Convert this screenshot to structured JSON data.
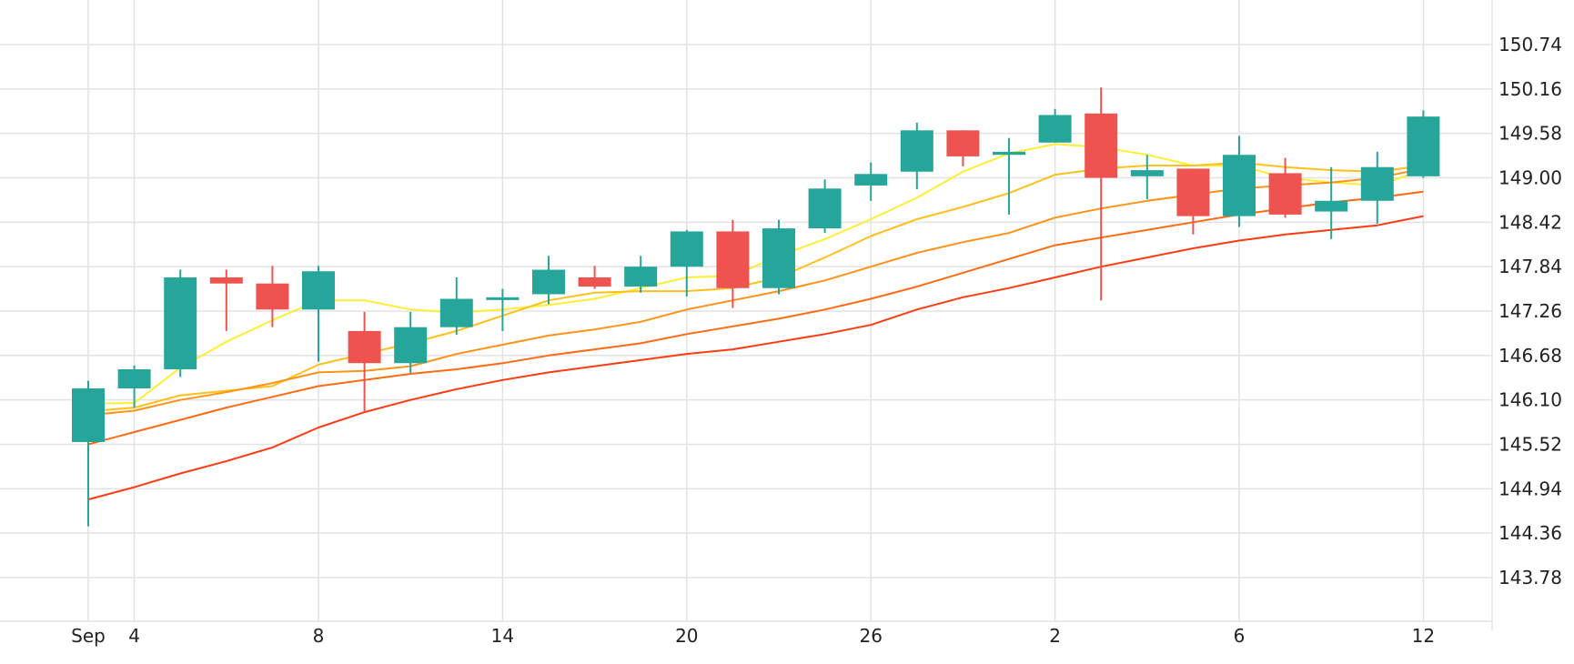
{
  "chart_data": {
    "type": "candlestick",
    "y_ticks": [
      "150.74",
      "150.16",
      "149.58",
      "149.00",
      "148.42",
      "147.84",
      "147.26",
      "146.68",
      "146.10",
      "145.52",
      "144.94",
      "144.36",
      "143.78"
    ],
    "ylim": [
      143.2,
      151.3
    ],
    "x_ticks": [
      {
        "index": 0,
        "label": "Sep"
      },
      {
        "index": 1,
        "label": "4"
      },
      {
        "index": 5,
        "label": "8"
      },
      {
        "index": 9,
        "label": "14"
      },
      {
        "index": 13,
        "label": "20"
      },
      {
        "index": 17,
        "label": "26"
      },
      {
        "index": 21,
        "label": "2"
      },
      {
        "index": 25,
        "label": "6"
      },
      {
        "index": 29,
        "label": "12"
      }
    ],
    "grid": true,
    "up_color": "#26a69a",
    "down_color": "#ef5350",
    "candles": [
      {
        "o": 145.55,
        "h": 146.35,
        "l": 144.45,
        "c": 146.25
      },
      {
        "o": 146.25,
        "h": 146.55,
        "l": 146.0,
        "c": 146.5
      },
      {
        "o": 146.5,
        "h": 147.8,
        "l": 146.4,
        "c": 147.7
      },
      {
        "o": 147.7,
        "h": 147.8,
        "l": 147.0,
        "c": 147.62
      },
      {
        "o": 147.62,
        "h": 147.85,
        "l": 147.05,
        "c": 147.28
      },
      {
        "o": 147.28,
        "h": 147.85,
        "l": 146.6,
        "c": 147.78
      },
      {
        "o": 147.0,
        "h": 147.25,
        "l": 145.95,
        "c": 146.58
      },
      {
        "o": 146.58,
        "h": 147.25,
        "l": 146.45,
        "c": 147.05
      },
      {
        "o": 147.05,
        "h": 147.7,
        "l": 146.95,
        "c": 147.42
      },
      {
        "o": 147.42,
        "h": 147.55,
        "l": 147.0,
        "c": 147.44
      },
      {
        "o": 147.48,
        "h": 147.98,
        "l": 147.35,
        "c": 147.8
      },
      {
        "o": 147.7,
        "h": 147.85,
        "l": 147.55,
        "c": 147.58
      },
      {
        "o": 147.58,
        "h": 147.98,
        "l": 147.5,
        "c": 147.84
      },
      {
        "o": 147.84,
        "h": 148.32,
        "l": 147.45,
        "c": 148.3
      },
      {
        "o": 148.3,
        "h": 148.45,
        "l": 147.3,
        "c": 147.56
      },
      {
        "o": 147.56,
        "h": 148.45,
        "l": 147.48,
        "c": 148.34
      },
      {
        "o": 148.34,
        "h": 148.98,
        "l": 148.28,
        "c": 148.86
      },
      {
        "o": 148.9,
        "h": 149.2,
        "l": 148.7,
        "c": 149.05
      },
      {
        "o": 149.08,
        "h": 149.72,
        "l": 148.85,
        "c": 149.62
      },
      {
        "o": 149.62,
        "h": 149.62,
        "l": 149.15,
        "c": 149.28
      },
      {
        "o": 149.3,
        "h": 149.52,
        "l": 148.52,
        "c": 149.34
      },
      {
        "o": 149.46,
        "h": 149.9,
        "l": 149.46,
        "c": 149.82
      },
      {
        "o": 149.84,
        "h": 150.18,
        "l": 147.4,
        "c": 149.0
      },
      {
        "o": 149.02,
        "h": 149.3,
        "l": 148.72,
        "c": 149.1
      },
      {
        "o": 149.12,
        "h": 149.12,
        "l": 148.26,
        "c": 148.5
      },
      {
        "o": 148.5,
        "h": 149.55,
        "l": 148.36,
        "c": 149.3
      },
      {
        "o": 149.06,
        "h": 149.26,
        "l": 148.48,
        "c": 148.52
      },
      {
        "o": 148.56,
        "h": 149.14,
        "l": 148.2,
        "c": 148.7
      },
      {
        "o": 148.7,
        "h": 149.34,
        "l": 148.4,
        "c": 149.14
      },
      {
        "o": 149.02,
        "h": 149.88,
        "l": 149.0,
        "c": 149.8
      }
    ],
    "series": [
      {
        "color": "#ffee33",
        "values": [
          146.05,
          146.06,
          146.52,
          146.86,
          147.14,
          147.4,
          147.4,
          147.28,
          147.24,
          147.28,
          147.34,
          147.42,
          147.56,
          147.7,
          147.72,
          147.98,
          148.2,
          148.46,
          148.74,
          149.08,
          149.32,
          149.44,
          149.4,
          149.3,
          149.16,
          149.16,
          149.0,
          148.94,
          148.9,
          149.1
        ]
      },
      {
        "color": "#ffc01a",
        "values": [
          145.95,
          146.0,
          146.16,
          146.22,
          146.28,
          146.56,
          146.7,
          146.84,
          147.0,
          147.2,
          147.4,
          147.5,
          147.52,
          147.52,
          147.56,
          147.7,
          147.96,
          148.24,
          148.46,
          148.62,
          148.8,
          149.04,
          149.12,
          149.16,
          149.16,
          149.2,
          149.14,
          149.1,
          149.08,
          149.16
        ]
      },
      {
        "color": "#ff9218",
        "values": [
          145.9,
          145.96,
          146.1,
          146.2,
          146.32,
          146.46,
          146.48,
          146.54,
          146.7,
          146.82,
          146.94,
          147.02,
          147.12,
          147.28,
          147.4,
          147.52,
          147.66,
          147.84,
          148.02,
          148.16,
          148.28,
          148.48,
          148.6,
          148.7,
          148.78,
          148.86,
          148.9,
          148.94,
          149.0,
          149.12
        ]
      },
      {
        "color": "#ff6a12",
        "values": [
          145.52,
          145.68,
          145.84,
          146.0,
          146.14,
          146.28,
          146.36,
          146.44,
          146.5,
          146.58,
          146.68,
          146.76,
          146.84,
          146.96,
          147.06,
          147.16,
          147.28,
          147.42,
          147.58,
          147.76,
          147.94,
          148.12,
          148.22,
          148.32,
          148.42,
          148.52,
          148.6,
          148.68,
          148.74,
          148.82
        ]
      },
      {
        "color": "#ff3b12",
        "values": [
          144.8,
          144.96,
          145.14,
          145.3,
          145.48,
          145.74,
          145.94,
          146.1,
          146.24,
          146.36,
          146.46,
          146.54,
          146.62,
          146.7,
          146.76,
          146.86,
          146.96,
          147.08,
          147.28,
          147.44,
          147.56,
          147.7,
          147.84,
          147.96,
          148.08,
          148.18,
          148.26,
          148.32,
          148.38,
          148.5
        ]
      }
    ]
  }
}
